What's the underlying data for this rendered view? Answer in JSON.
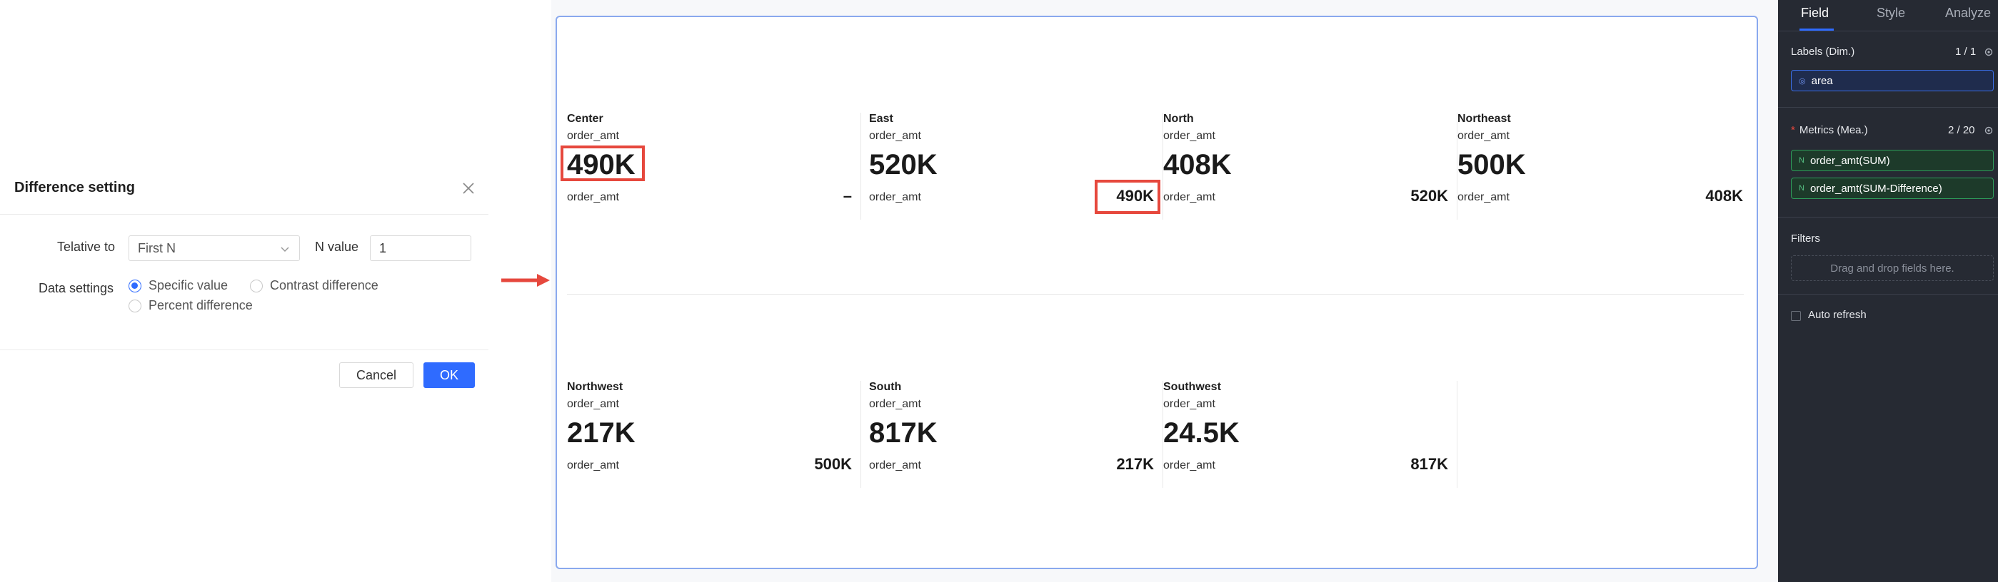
{
  "dialog": {
    "title": "Difference setting",
    "relative_label": "Telative to",
    "relative_value": "First N",
    "n_label": "N value",
    "n_value": "1",
    "data_settings_label": "Data settings",
    "options": [
      {
        "label": "Specific value",
        "selected": true
      },
      {
        "label": "Contrast difference",
        "selected": false
      },
      {
        "label": "Percent difference",
        "selected": false
      }
    ],
    "cancel_label": "Cancel",
    "ok_label": "OK"
  },
  "cards": [
    {
      "region": "Center",
      "metric": "order_amt",
      "value": "490K",
      "diff_label": "order_amt",
      "diff_value": "–"
    },
    {
      "region": "East",
      "metric": "order_amt",
      "value": "520K",
      "diff_label": "order_amt",
      "diff_value": "490K"
    },
    {
      "region": "North",
      "metric": "order_amt",
      "value": "408K",
      "diff_label": "order_amt",
      "diff_value": "520K"
    },
    {
      "region": "Northeast",
      "metric": "order_amt",
      "value": "500K",
      "diff_label": "order_amt",
      "diff_value": "408K"
    },
    {
      "region": "Northwest",
      "metric": "order_amt",
      "value": "217K",
      "diff_label": "order_amt",
      "diff_value": "500K"
    },
    {
      "region": "South",
      "metric": "order_amt",
      "value": "817K",
      "diff_label": "order_amt",
      "diff_value": "217K"
    },
    {
      "region": "Southwest",
      "metric": "order_amt",
      "value": "24.5K",
      "diff_label": "order_amt",
      "diff_value": "817K"
    }
  ],
  "sidebar": {
    "tabs": [
      "Field",
      "Style",
      "Analyze"
    ],
    "labels_title": "Labels (Dim.)",
    "labels_count": "1 / 1",
    "dimension": "area",
    "metrics_title": "Metrics (Mea.)",
    "metrics_count": "2 / 20",
    "measures": [
      "order_amt(SUM)",
      "order_amt(SUM-Difference)"
    ],
    "filters_title": "Filters",
    "filters_placeholder": "Drag and drop fields here.",
    "auto_refresh": "Auto refresh"
  },
  "colors": {
    "accent": "#2f6bff",
    "highlight": "#e6483d",
    "sidebar_bg": "#262a33"
  }
}
